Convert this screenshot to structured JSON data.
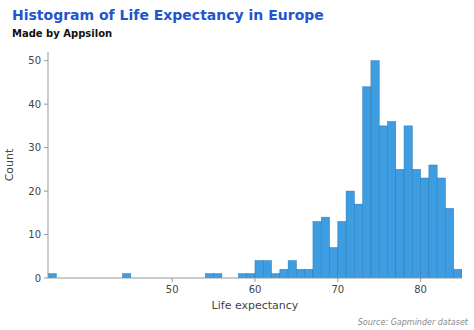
{
  "chart_data": {
    "type": "histogram",
    "title": "Histogram of Life Expectancy in Europe",
    "subtitle": "Made by Appsilon",
    "xlabel": "Life expectancy",
    "ylabel": "Count",
    "annotation": "Source: Gapminder dataset",
    "color": "#3d9de0",
    "bins": [
      35,
      36,
      37,
      38,
      39,
      40,
      41,
      42,
      43,
      44,
      45,
      46,
      47,
      48,
      49,
      50,
      51,
      52,
      53,
      54,
      55,
      56,
      57,
      58,
      59,
      60,
      61,
      62,
      63,
      64,
      65,
      66,
      67,
      68,
      69,
      70,
      71,
      72,
      73,
      74,
      75,
      76,
      77,
      78,
      79,
      80,
      81,
      82,
      83,
      84,
      85
    ],
    "values": [
      1,
      0,
      0,
      0,
      0,
      0,
      0,
      0,
      0,
      1,
      0,
      0,
      0,
      0,
      0,
      0,
      0,
      0,
      0,
      1,
      1,
      0,
      0,
      1,
      1,
      4,
      4,
      1,
      2,
      4,
      2,
      2,
      13,
      14,
      7,
      13,
      20,
      17,
      44,
      50,
      35,
      36,
      25,
      35,
      25,
      23,
      26,
      23,
      16,
      2
    ],
    "xlim": [
      35,
      85
    ],
    "ylim": [
      0,
      52
    ],
    "xticks": [
      50,
      60,
      70,
      80
    ],
    "yticks": [
      0,
      10,
      20,
      30,
      40,
      50
    ],
    "grid": false
  }
}
